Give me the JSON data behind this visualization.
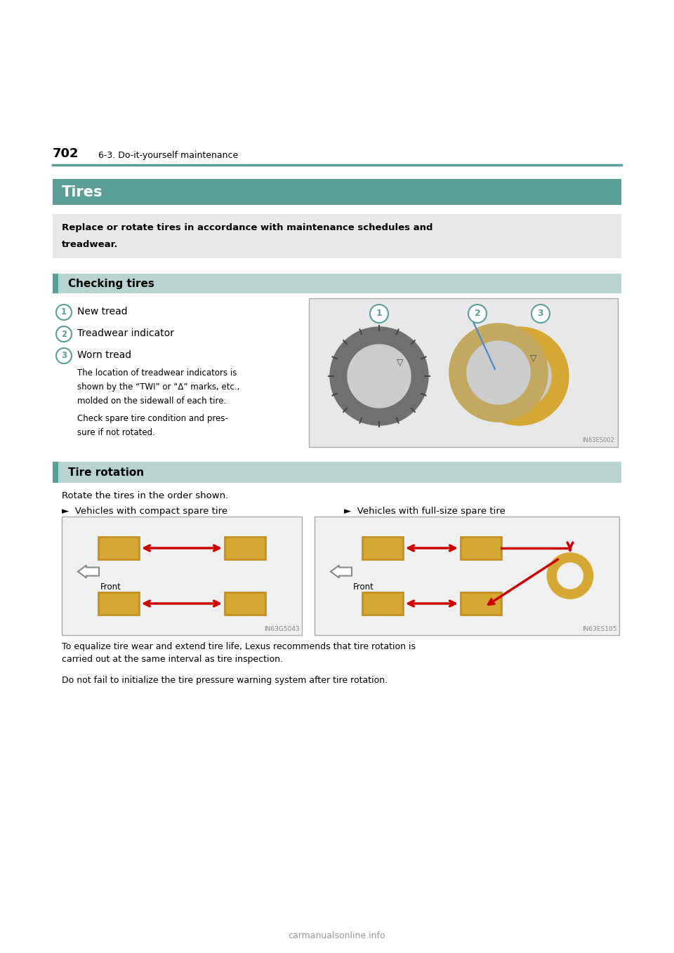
{
  "page_number": "702",
  "header_section": "6-3. Do-it-yourself maintenance",
  "title": "Tires",
  "title_bg_color": "#5a9e96",
  "notice_text_line1": "Replace or rotate tires in accordance with maintenance schedules and",
  "notice_text_line2": "treadwear.",
  "notice_bg_color": "#e8e8e8",
  "section1_title": "Checking tires",
  "section_bg_color": "#b8d4d0",
  "section_bar_color": "#5a9e96",
  "item1": "New tread",
  "item2": "Treadwear indicator",
  "item3": "Worn tread",
  "para1_line1": "The location of treadwear indicators is",
  "para1_line2": "shown by the “TWI” or “Δ” marks, etc.,",
  "para1_line3": "molded on the sidewall of each tire.",
  "para2_line1": "Check spare tire condition and pres-",
  "para2_line2": "sure if not rotated.",
  "section2_title": "Tire rotation",
  "rotate_text": "Rotate the tires in the order shown.",
  "compact_label": "►  Vehicles with compact spare tire",
  "fullsize_label": "►  Vehicles with full-size spare tire",
  "img1_id": "IN63G5043",
  "img2_id": "IN63ES105",
  "tire_img_id": "IN63ES002",
  "footer1_line1": "To equalize tire wear and extend tire life, Lexus recommends that tire rotation is",
  "footer1_line2": "carried out at the same interval as tire inspection.",
  "footer2": "Do not fail to initialize the tire pressure warning system after tire rotation.",
  "teal_color": "#5a9e96",
  "circle_color": "#5a9e96",
  "red_color": "#cc0000",
  "tire_yellow": "#d4a832",
  "tire_dark_yellow": "#c49020",
  "tire_gray": "#b0b0b0",
  "background_color": "#ffffff",
  "watermark": "carmanualsonline.info"
}
